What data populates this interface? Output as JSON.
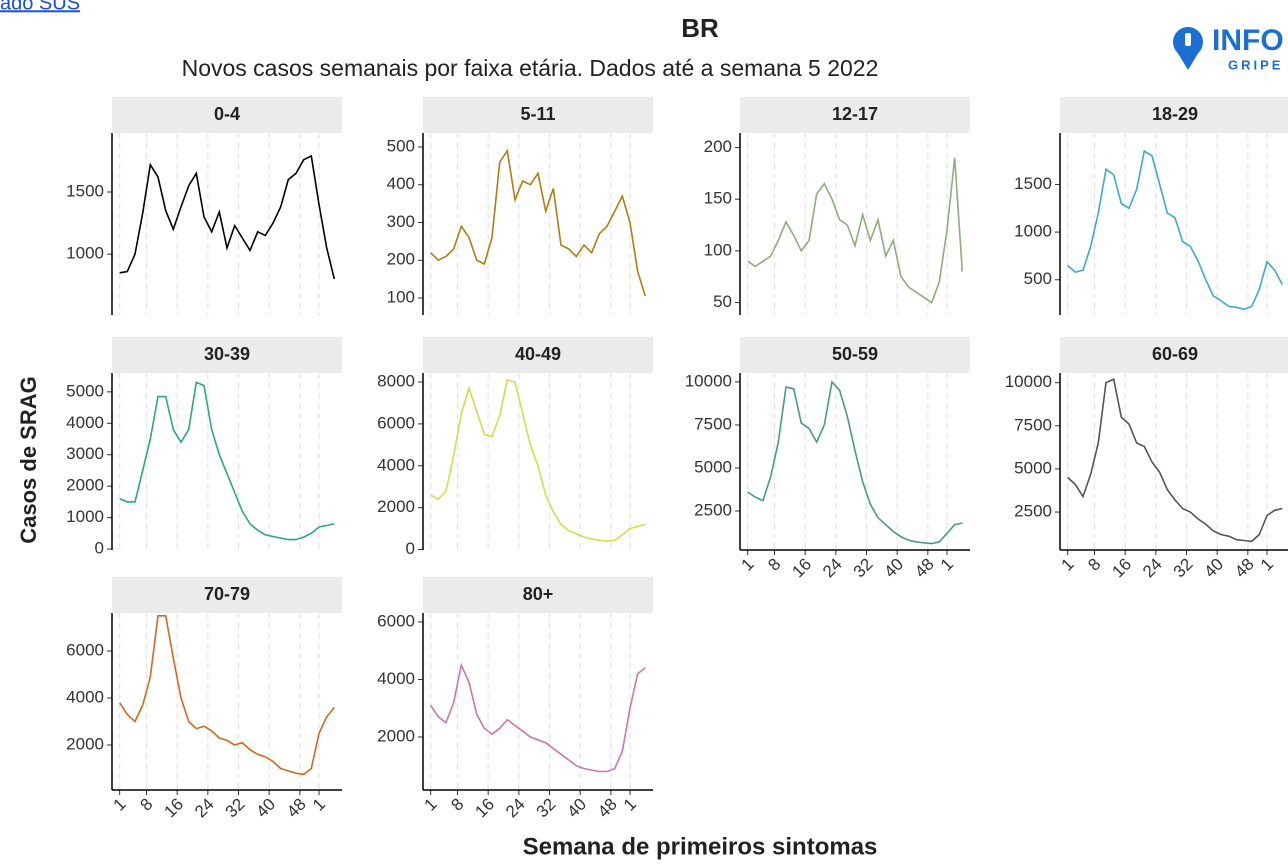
{
  "header": {
    "link": "ado SUS",
    "logo_top": "INFO",
    "logo_bottom": "GRIPE"
  },
  "title": "BR",
  "subtitle": "Novos casos semanais por faixa etária. Dados até a semana 5 2022",
  "y_label": "Casos de SRAG",
  "x_label": "Semana de primeiros sintomas",
  "chart_data": [
    {
      "type": "line",
      "title": "0-4",
      "color": "#000000",
      "show_x_axis": false,
      "grid": true,
      "x": [
        1,
        3,
        5,
        7,
        9,
        11,
        13,
        15,
        17,
        19,
        21,
        23,
        25,
        27,
        29,
        31,
        33,
        35,
        37,
        39,
        41,
        43,
        45,
        47,
        49,
        51,
        53,
        55,
        57
      ],
      "values": [
        850,
        860,
        1000,
        1330,
        1720,
        1620,
        1350,
        1200,
        1380,
        1550,
        1650,
        1300,
        1180,
        1340,
        1050,
        1230,
        1130,
        1030,
        1180,
        1150,
        1250,
        1380,
        1600,
        1650,
        1760,
        1790,
        1400,
        1050,
        800
      ],
      "xlim": [
        -1,
        59
      ],
      "xticks": [
        1,
        8,
        16,
        24,
        32,
        40,
        48,
        {
          "value": 53,
          "label": "1"
        }
      ],
      "ylim": [
        510,
        1975
      ],
      "yticks": [
        1000,
        1500
      ]
    },
    {
      "type": "line",
      "title": "5-11",
      "color": "#b07d12",
      "show_x_axis": false,
      "grid": true,
      "x": [
        1,
        3,
        5,
        7,
        9,
        11,
        13,
        15,
        17,
        19,
        21,
        23,
        25,
        27,
        29,
        31,
        33,
        35,
        37,
        39,
        41,
        43,
        45,
        47,
        49,
        51,
        53,
        55,
        57
      ],
      "values": [
        220,
        200,
        210,
        230,
        290,
        260,
        200,
        190,
        260,
        460,
        490,
        360,
        410,
        400,
        430,
        330,
        390,
        240,
        230,
        210,
        240,
        220,
        270,
        290,
        330,
        370,
        300,
        170,
        105
      ],
      "xlim": [
        -1,
        59
      ],
      "xticks": [
        1,
        8,
        16,
        24,
        32,
        40,
        48,
        {
          "value": 53,
          "label": "1"
        }
      ],
      "ylim": [
        55,
        537
      ],
      "yticks": [
        100,
        200,
        300,
        400,
        500
      ]
    },
    {
      "type": "line",
      "title": "12-17",
      "color": "#8fac7a",
      "show_x_axis": false,
      "grid": true,
      "x": [
        1,
        3,
        5,
        7,
        9,
        11,
        13,
        15,
        17,
        19,
        21,
        23,
        25,
        27,
        29,
        31,
        33,
        35,
        37,
        39,
        41,
        43,
        45,
        47,
        49,
        51,
        53,
        55,
        57
      ],
      "values": [
        90,
        85,
        90,
        95,
        110,
        128,
        115,
        100,
        110,
        155,
        165,
        150,
        130,
        125,
        105,
        135,
        110,
        130,
        95,
        110,
        75,
        65,
        60,
        55,
        50,
        70,
        120,
        190,
        80
      ],
      "xlim": [
        -1,
        59
      ],
      "xticks": [
        1,
        8,
        16,
        24,
        32,
        40,
        48,
        {
          "value": 53,
          "label": "1"
        }
      ],
      "ylim": [
        38,
        214
      ],
      "yticks": [
        50,
        100,
        150,
        200
      ]
    },
    {
      "type": "line",
      "title": "18-29",
      "color": "#3eaac6",
      "show_x_axis": false,
      "grid": true,
      "x": [
        1,
        3,
        5,
        7,
        9,
        11,
        13,
        15,
        17,
        19,
        21,
        23,
        25,
        27,
        29,
        31,
        33,
        35,
        37,
        39,
        41,
        43,
        45,
        47,
        49,
        51,
        53,
        55,
        57
      ],
      "values": [
        650,
        580,
        600,
        850,
        1200,
        1660,
        1600,
        1300,
        1250,
        1450,
        1850,
        1800,
        1500,
        1200,
        1150,
        900,
        850,
        700,
        500,
        330,
        280,
        220,
        210,
        190,
        220,
        400,
        690,
        600,
        450
      ],
      "xlim": [
        -1,
        59
      ],
      "xticks": [
        1,
        8,
        16,
        24,
        32,
        40,
        48,
        {
          "value": 53,
          "label": "1"
        }
      ],
      "ylim": [
        130,
        2040
      ],
      "yticks": [
        500,
        1000,
        1500
      ]
    },
    {
      "type": "line",
      "title": "30-39",
      "color": "#2aaa7a",
      "show_x_axis": false,
      "grid": true,
      "x": [
        1,
        3,
        5,
        7,
        9,
        11,
        13,
        15,
        17,
        19,
        21,
        23,
        25,
        27,
        29,
        31,
        33,
        35,
        37,
        39,
        41,
        43,
        45,
        47,
        49,
        51,
        53,
        55,
        57
      ],
      "values": [
        1600,
        1500,
        1500,
        2500,
        3500,
        4850,
        4850,
        3800,
        3400,
        3800,
        5300,
        5200,
        3800,
        3000,
        2400,
        1800,
        1200,
        800,
        600,
        450,
        400,
        350,
        300,
        300,
        380,
        500,
        700,
        750,
        800
      ],
      "xlim": [
        -1,
        59
      ],
      "xticks": [
        1,
        8,
        16,
        24,
        32,
        40,
        48,
        {
          "value": 53,
          "label": "1"
        }
      ],
      "ylim": [
        -30,
        5600
      ],
      "yticks": [
        0,
        1000,
        2000,
        3000,
        4000,
        5000
      ]
    },
    {
      "type": "line",
      "title": "40-49",
      "color": "#d4dc4a",
      "show_x_axis": false,
      "grid": true,
      "x": [
        1,
        3,
        5,
        7,
        9,
        11,
        13,
        15,
        17,
        19,
        21,
        23,
        25,
        27,
        29,
        31,
        33,
        35,
        37,
        39,
        41,
        43,
        45,
        47,
        49,
        51,
        53,
        55,
        57
      ],
      "values": [
        2600,
        2400,
        2800,
        4500,
        6500,
        7700,
        6600,
        5500,
        5400,
        6400,
        8100,
        8000,
        6500,
        5000,
        4000,
        2600,
        1800,
        1200,
        900,
        750,
        600,
        500,
        450,
        400,
        450,
        700,
        1000,
        1100,
        1200
      ],
      "xlim": [
        -1,
        59
      ],
      "xticks": [
        1,
        8,
        16,
        24,
        32,
        40,
        48,
        {
          "value": 53,
          "label": "1"
        }
      ],
      "ylim": [
        -20,
        8430
      ],
      "yticks": [
        0,
        2000,
        4000,
        6000,
        8000
      ]
    },
    {
      "type": "line",
      "title": "50-59",
      "color": "#459a8a",
      "show_x_axis": true,
      "grid": true,
      "x": [
        1,
        3,
        5,
        7,
        9,
        11,
        13,
        15,
        17,
        19,
        21,
        23,
        25,
        27,
        29,
        31,
        33,
        35,
        37,
        39,
        41,
        43,
        45,
        47,
        49,
        51,
        53,
        55,
        57
      ],
      "values": [
        3600,
        3300,
        3100,
        4500,
        6500,
        9700,
        9600,
        7600,
        7300,
        6500,
        7500,
        10000,
        9500,
        8000,
        6000,
        4200,
        2900,
        2100,
        1700,
        1300,
        1000,
        800,
        700,
        650,
        600,
        700,
        1200,
        1700,
        1800
      ],
      "xlim": [
        -1,
        59
      ],
      "xticks": [
        1,
        8,
        16,
        24,
        32,
        40,
        48,
        {
          "value": 53,
          "label": "1"
        }
      ],
      "ylim": [
        230,
        10520
      ],
      "yticks": [
        2500,
        5000,
        7500,
        10000
      ]
    },
    {
      "type": "line",
      "title": "60-69",
      "color": "#555555",
      "show_x_axis": true,
      "grid": true,
      "x": [
        1,
        3,
        5,
        7,
        9,
        11,
        13,
        15,
        17,
        19,
        21,
        23,
        25,
        27,
        29,
        31,
        33,
        35,
        37,
        39,
        41,
        43,
        45,
        47,
        49,
        51,
        53,
        55,
        57
      ],
      "values": [
        4500,
        4100,
        3400,
        4700,
        6500,
        10000,
        10200,
        8000,
        7600,
        6500,
        6300,
        5400,
        4800,
        3800,
        3200,
        2700,
        2500,
        2100,
        1800,
        1400,
        1200,
        1100,
        900,
        850,
        800,
        1200,
        2300,
        2600,
        2700
      ],
      "xlim": [
        -1,
        59
      ],
      "xticks": [
        1,
        8,
        16,
        24,
        32,
        40,
        48,
        {
          "value": 53,
          "label": "1"
        }
      ],
      "ylim": [
        300,
        10560
      ],
      "yticks": [
        2500,
        5000,
        7500,
        10000
      ]
    },
    {
      "type": "line",
      "title": "70-79",
      "color": "#d2691e",
      "show_x_axis": true,
      "grid": true,
      "x": [
        1,
        3,
        5,
        7,
        9,
        11,
        13,
        15,
        17,
        19,
        21,
        23,
        25,
        27,
        29,
        31,
        33,
        35,
        37,
        39,
        41,
        43,
        45,
        47,
        49,
        51,
        53,
        55,
        57
      ],
      "values": [
        3800,
        3300,
        3000,
        3700,
        4900,
        7500,
        7500,
        5700,
        4000,
        3000,
        2700,
        2800,
        2600,
        2300,
        2200,
        2000,
        2100,
        1800,
        1600,
        1500,
        1300,
        1000,
        900,
        800,
        750,
        1000,
        2500,
        3200,
        3600
      ],
      "xlim": [
        -1,
        59
      ],
      "xticks": [
        1,
        8,
        16,
        24,
        32,
        40,
        48,
        {
          "value": 53,
          "label": "1"
        }
      ],
      "ylim": [
        85,
        7620
      ],
      "yticks": [
        2000,
        4000,
        6000
      ]
    },
    {
      "type": "line",
      "title": "80+",
      "color": "#c878a8",
      "show_x_axis": true,
      "grid": true,
      "x": [
        1,
        3,
        5,
        7,
        9,
        11,
        13,
        15,
        17,
        19,
        21,
        23,
        25,
        27,
        29,
        31,
        33,
        35,
        37,
        39,
        41,
        43,
        45,
        47,
        49,
        51,
        53,
        55,
        57
      ],
      "values": [
        3100,
        2700,
        2500,
        3200,
        4500,
        3900,
        2800,
        2300,
        2100,
        2300,
        2600,
        2400,
        2200,
        2000,
        1900,
        1800,
        1600,
        1400,
        1200,
        1000,
        900,
        850,
        800,
        800,
        900,
        1500,
        3000,
        4200,
        4400
      ],
      "xlim": [
        -1,
        59
      ],
      "xticks": [
        1,
        8,
        16,
        24,
        32,
        40,
        48,
        {
          "value": 53,
          "label": "1"
        }
      ],
      "ylim": [
        157,
        6310
      ],
      "yticks": [
        2000,
        4000,
        6000
      ]
    }
  ]
}
